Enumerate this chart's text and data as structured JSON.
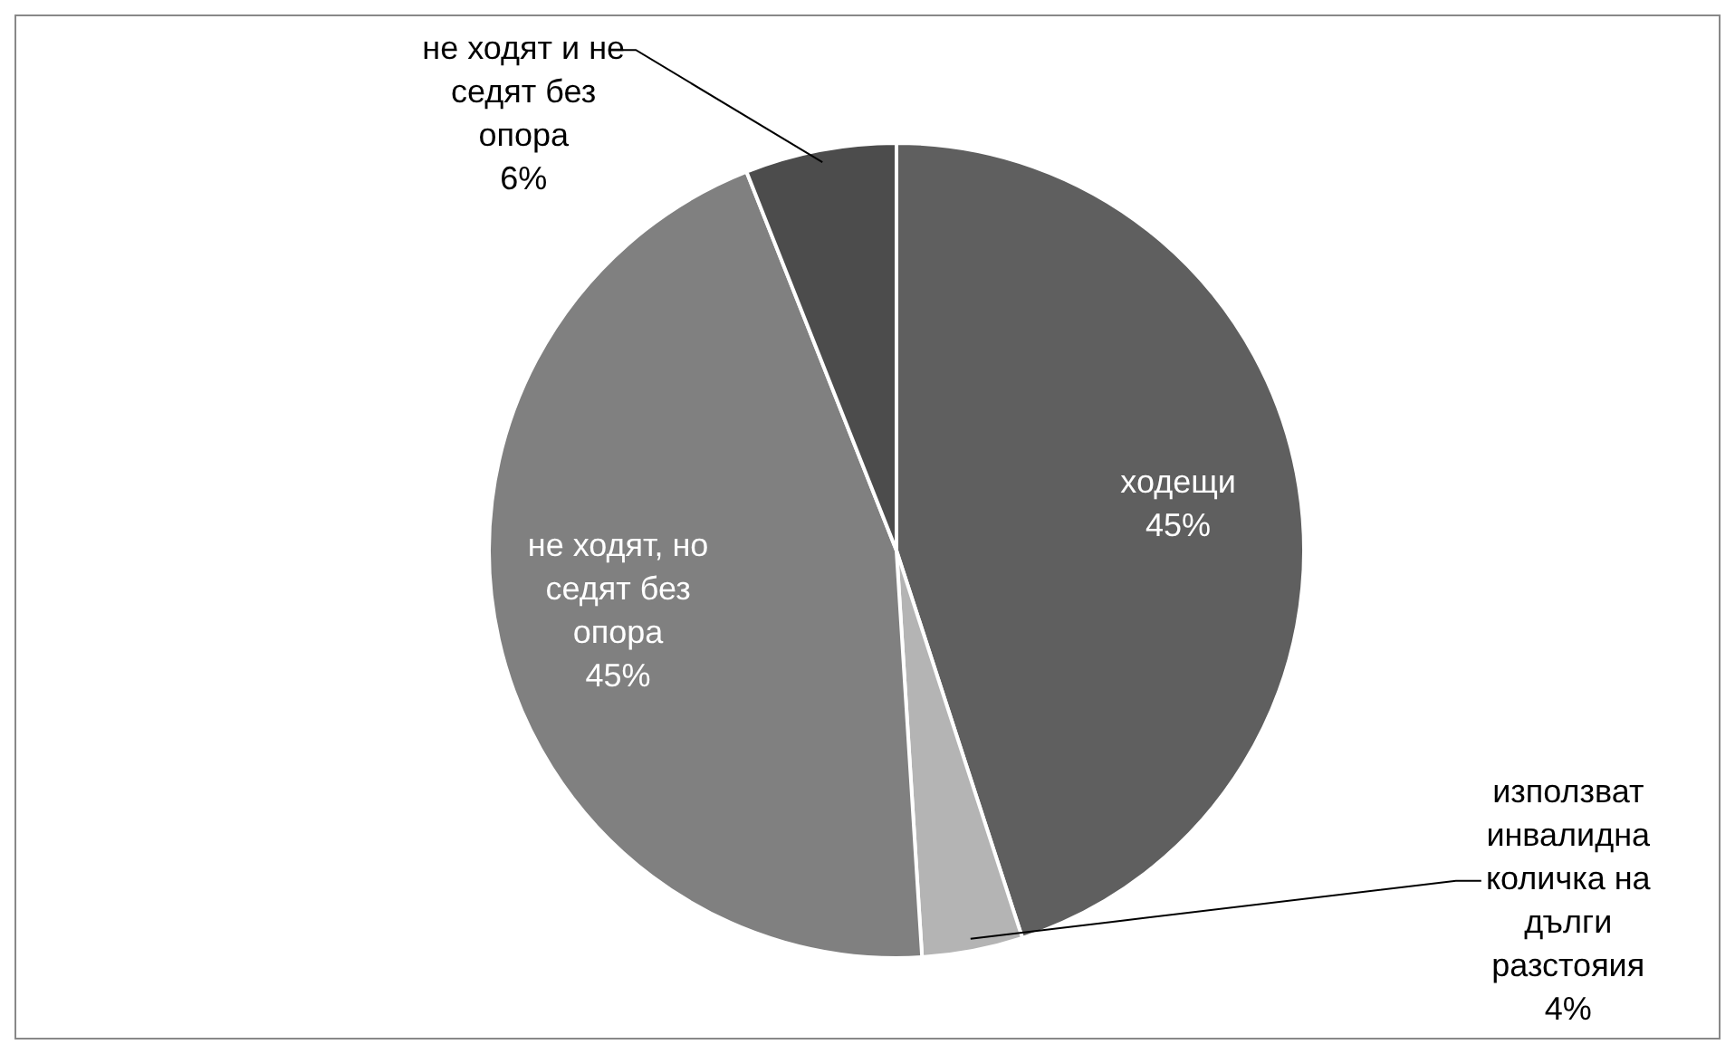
{
  "chart_data": {
    "type": "pie",
    "categories": [
      "ходещи",
      "използват инвалидна количка на дълги разстояия",
      "не ходят, но седят без опора",
      "не ходят и не седят без опора"
    ],
    "values": [
      45,
      4,
      45,
      6
    ],
    "value_labels": [
      "45%",
      "4%",
      "45%",
      "6%"
    ],
    "colors": [
      "#5f5f5f",
      "#b4b4b4",
      "#808080",
      "#4c4c4c"
    ],
    "legend": false
  }
}
